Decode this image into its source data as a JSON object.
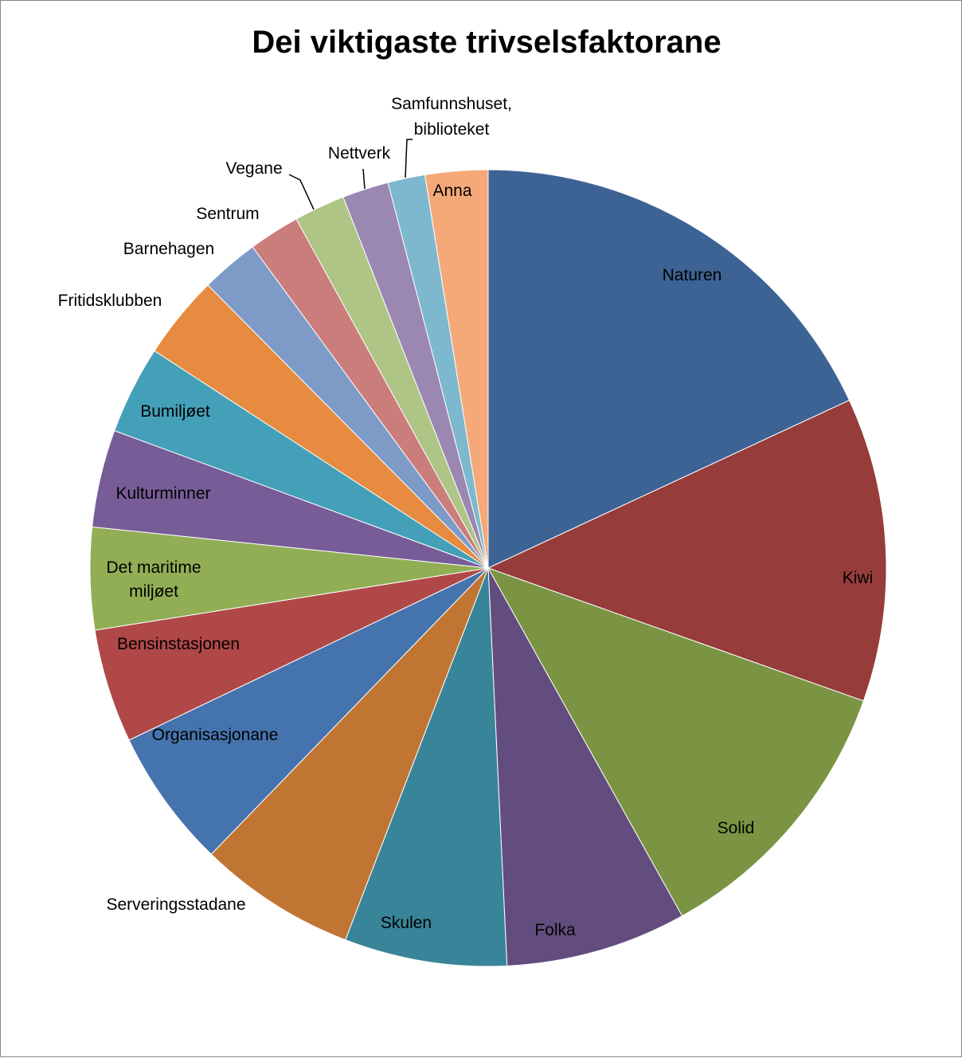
{
  "chart_data": {
    "type": "pie",
    "title": "Dei viktigaste trivselsfaktorane",
    "start_angle_deg": 0,
    "direction": "clockwise",
    "legend": "none",
    "slices": [
      {
        "label": "Naturen",
        "value": 19.2,
        "color": "#3D6394"
      },
      {
        "label": "Kiwi",
        "value": 13.1,
        "color": "#963C3B"
      },
      {
        "label": "Solid",
        "value": 12.2,
        "color": "#7A9443"
      },
      {
        "label": "Folka",
        "value": 7.8,
        "color": "#634D7E"
      },
      {
        "label": "Skulen",
        "value": 7.0,
        "color": "#388499"
      },
      {
        "label": "Serveringsstadane",
        "value": 6.8,
        "color": "#C17533"
      },
      {
        "label": "Organisasjonane",
        "value": 6.0,
        "color": "#4573AD"
      },
      {
        "label": "Bensinstasjonen",
        "value": 4.9,
        "color": "#B04847"
      },
      {
        "label": "Det maritime miljøet",
        "value": 4.4,
        "color": "#91AE55"
      },
      {
        "label": "Kulturminner",
        "value": 4.2,
        "color": "#775C98"
      },
      {
        "label": "Bumiljøet",
        "value": 3.8,
        "color": "#44A0B8"
      },
      {
        "label": "Fritidsklubben",
        "value": 3.6,
        "color": "#E68B40"
      },
      {
        "label": "Barnehagen",
        "value": 2.5,
        "color": "#7E9BC8"
      },
      {
        "label": "Sentrum",
        "value": 2.2,
        "color": "#CA7D7B"
      },
      {
        "label": "Vegane",
        "value": 2.2,
        "color": "#AEC585"
      },
      {
        "label": "Nettverk",
        "value": 2.0,
        "color": "#9A88B2"
      },
      {
        "label": "Samfunnshuset, biblioteket",
        "value": 1.6,
        "color": "#7DB8CE"
      },
      {
        "label": "Anna",
        "value": 2.7,
        "color": "#F5A979"
      }
    ]
  }
}
